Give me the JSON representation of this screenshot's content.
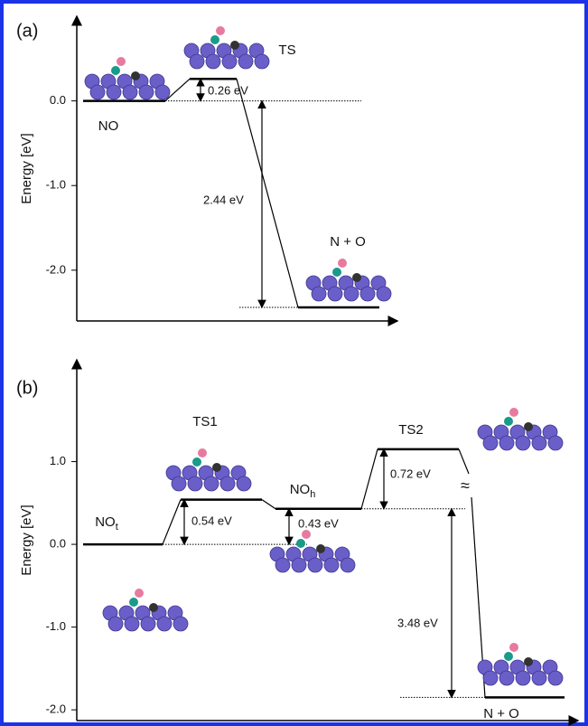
{
  "chart_data": [
    {
      "type": "energy-profile",
      "panel_label": "(a)",
      "ylabel": "Energy [eV]",
      "color": "#000000",
      "ylim": [
        -2.6,
        1.0
      ],
      "yticks": [
        {
          "value": 0,
          "label": "0.0"
        },
        {
          "value": -1,
          "label": "-1.0"
        },
        {
          "value": -2,
          "label": "-2.0"
        }
      ],
      "levels": [
        {
          "name": "NO",
          "value": 0
        },
        {
          "name": "TS",
          "value": 0.26
        },
        {
          "name": "N + O",
          "value": -2.44
        }
      ],
      "gaps": [
        {
          "label": "0.26 eV",
          "value": 0.26
        },
        {
          "label": "2.44 eV",
          "value": 2.44
        }
      ]
    },
    {
      "type": "energy-profile",
      "panel_label": "(b)",
      "ylabel": "Energy [eV]",
      "color": "#000000",
      "ylim": [
        -2.13,
        2.23
      ],
      "yticks": [
        {
          "value": 1,
          "label": "1.0"
        },
        {
          "value": 0,
          "label": "0.0"
        },
        {
          "value": -1,
          "label": "-1.0"
        },
        {
          "value": -2,
          "label": "-2.0"
        }
      ],
      "levels": [
        {
          "name": "NO",
          "subscript": "t",
          "value": 0
        },
        {
          "name": "TS1",
          "value": 0.54
        },
        {
          "name": "NO",
          "subscript": "h",
          "value": 0.43
        },
        {
          "name": "TS2",
          "value": 1.15
        },
        {
          "name": "N + O",
          "value": -1.85
        }
      ],
      "gaps": [
        {
          "label": "0.54 eV",
          "value": 0.54
        },
        {
          "label": "0.43 eV",
          "value": 0.43
        },
        {
          "label": "0.72 eV",
          "value": 0.72
        },
        {
          "label": "3.48 eV",
          "value": 3.48
        }
      ],
      "break_symbol": "≈"
    }
  ]
}
